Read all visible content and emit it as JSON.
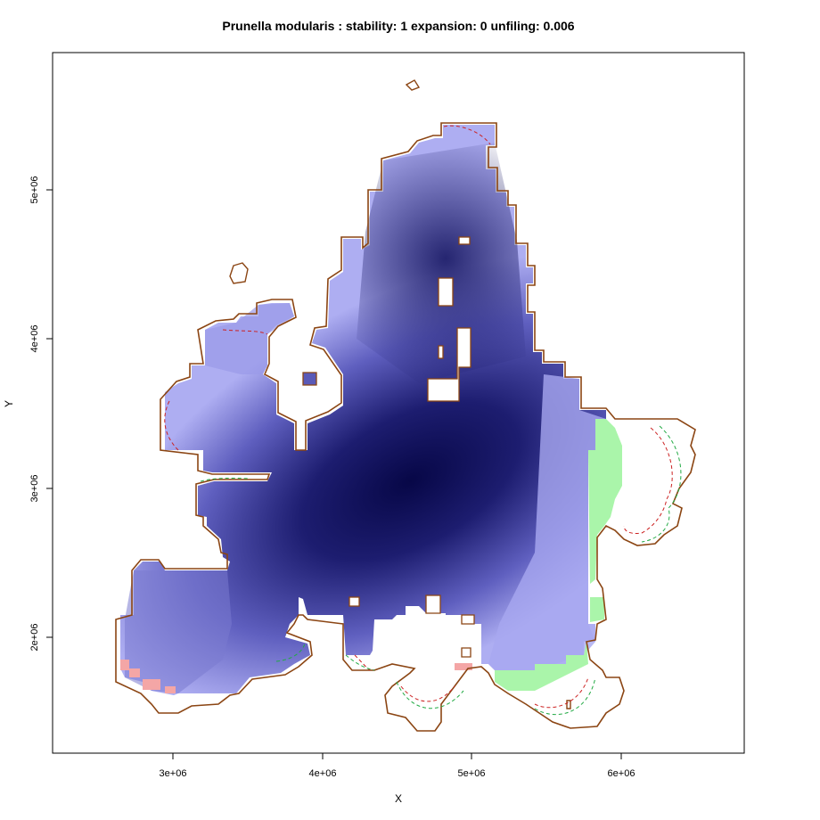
{
  "title": "Prunella modularis : stability: 1 expansion: 0 unfiling: 0.006",
  "xlabel": "X",
  "ylabel": "Y",
  "x_ticks": [
    "3e+06",
    "4e+06",
    "5e+06",
    "6e+06"
  ],
  "y_ticks": [
    "2e+06",
    "3e+06",
    "4e+06",
    "5e+06"
  ],
  "x_range": [
    2200000,
    6850000
  ],
  "y_range": [
    1150000,
    5850000
  ],
  "colors": {
    "density_high": "#0b0b52",
    "density_low": "#aaaaf0",
    "unfilling": "#f4a6a6",
    "expansion": "#aaf5aa",
    "outline": "#8b4513",
    "contour_red": "#cc2222",
    "contour_green": "#22aa44"
  }
}
